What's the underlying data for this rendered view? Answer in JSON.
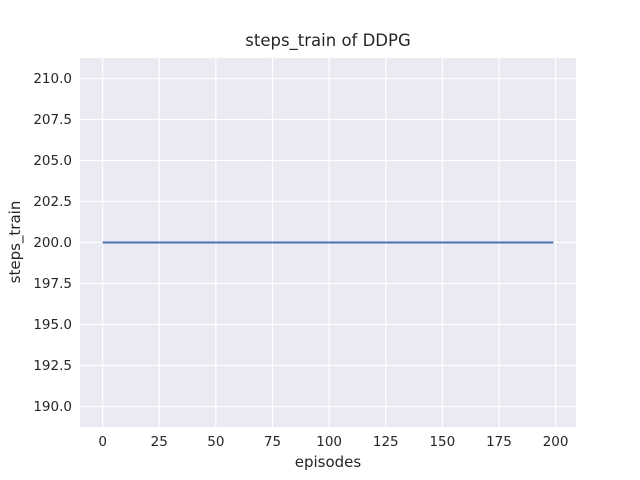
{
  "chart_data": {
    "type": "line",
    "title": "steps_train of DDPG",
    "xlabel": "episodes",
    "ylabel": "steps_train",
    "xlim": [
      -10,
      209
    ],
    "ylim": [
      188.75,
      211.25
    ],
    "xticks": [
      0,
      25,
      50,
      75,
      100,
      125,
      150,
      175,
      200
    ],
    "xtick_labels": [
      "0",
      "25",
      "50",
      "75",
      "100",
      "125",
      "150",
      "175",
      "200"
    ],
    "yticks": [
      190.0,
      192.5,
      195.0,
      197.5,
      200.0,
      202.5,
      205.0,
      207.5,
      210.0
    ],
    "ytick_labels": [
      "190.0",
      "192.5",
      "195.0",
      "197.5",
      "200.0",
      "202.5",
      "205.0",
      "207.5",
      "210.0"
    ],
    "grid": true,
    "legend": false,
    "series": [
      {
        "name": "steps_train",
        "x": [
          0,
          199
        ],
        "y": [
          200,
          200
        ],
        "color": "#4C72B0"
      }
    ],
    "colors": {
      "figure_background": "#FFFFFF",
      "plot_background": "#EAEAF2",
      "gridline": "#FFFFFF",
      "text": "#262626"
    }
  }
}
